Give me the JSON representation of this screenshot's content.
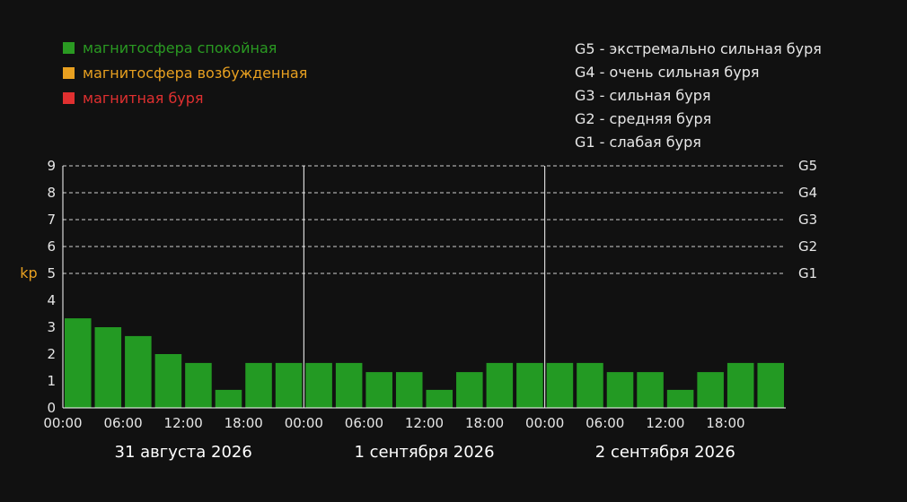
{
  "legend": {
    "items": [
      {
        "label": "магнитосфера спокойная",
        "color": "#2a9a22"
      },
      {
        "label": "магнитосфера возбужденная",
        "color": "#e8a020"
      },
      {
        "label": "магнитная буря",
        "color": "#e03030"
      }
    ]
  },
  "storm_scale": [
    "G5 - экстремально сильная буря",
    "G4 - очень сильная буря",
    "G3 - сильная буря",
    "G2 - средняя буря",
    "G1 - слабая буря"
  ],
  "chart_data": {
    "type": "bar",
    "ylabel": "kp",
    "ylim": [
      0,
      9
    ],
    "yticks": [
      0,
      1,
      2,
      3,
      4,
      5,
      6,
      7,
      8,
      9
    ],
    "right_labels": [
      {
        "value": 9,
        "label": "G5"
      },
      {
        "value": 8,
        "label": "G4"
      },
      {
        "value": 7,
        "label": "G3"
      },
      {
        "value": 6,
        "label": "G2"
      },
      {
        "value": 5,
        "label": "G1"
      }
    ],
    "grid": "dashed horizontal at 5–9",
    "bar_color": "#239a23",
    "xtick_labels": [
      "00:00",
      "06:00",
      "12:00",
      "18:00",
      "00:00",
      "06:00",
      "12:00",
      "18:00",
      "00:00",
      "06:00",
      "12:00",
      "18:00"
    ],
    "days": [
      "31 августа 2026",
      "1 сентября 2026",
      "2 сентября 2026"
    ],
    "values": [
      3.33,
      3.0,
      2.67,
      2.0,
      1.67,
      0.67,
      1.67,
      1.67,
      1.67,
      1.67,
      1.33,
      1.33,
      0.67,
      1.33,
      1.67,
      1.67,
      1.67,
      1.67,
      1.33,
      1.33,
      0.67,
      1.33,
      1.67,
      1.67
    ]
  }
}
